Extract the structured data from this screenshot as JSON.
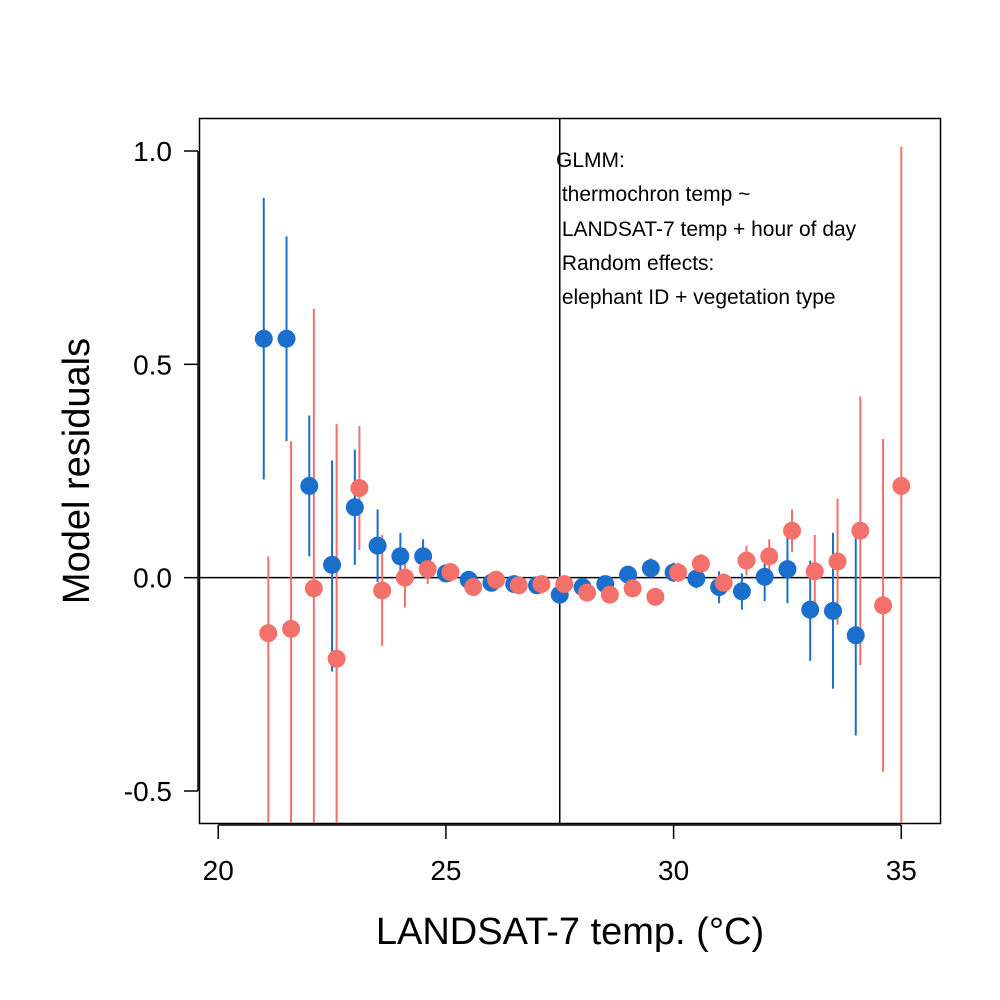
{
  "chart_data": {
    "type": "scatter",
    "xlabel": "LANDSAT-7 temp. (°C)",
    "ylabel": "Model residuals",
    "xlim": [
      19.6,
      35.85
    ],
    "ylim": [
      -0.575,
      1.075
    ],
    "x_ticks": [
      20,
      25,
      30,
      35
    ],
    "y_ticks": [
      -0.5,
      0.0,
      0.5,
      1.0
    ],
    "x_tick_labels": [
      "20",
      "25",
      "30",
      "35"
    ],
    "y_tick_labels": [
      "-0.5",
      "0.0",
      "0.5",
      "1.0"
    ],
    "reference_lines": {
      "horizontal_y": 0.0,
      "vertical_x": 27.5
    },
    "grid": false,
    "annotation_lines": [
      "GLMM:",
      " thermochron temp ~",
      " LANDSAT-7 temp + hour of day",
      " Random effects:",
      " elephant ID + vegetation type"
    ],
    "series": [
      {
        "color": "#1a6fcc",
        "points": [
          {
            "x": 21.0,
            "y": 0.56,
            "lo": 0.23,
            "hi": 0.89
          },
          {
            "x": 21.5,
            "y": 0.56,
            "lo": 0.32,
            "hi": 0.8
          },
          {
            "x": 22.0,
            "y": 0.215,
            "lo": 0.05,
            "hi": 0.38
          },
          {
            "x": 22.5,
            "y": 0.03,
            "lo": -0.22,
            "hi": 0.275
          },
          {
            "x": 23.0,
            "y": 0.165,
            "lo": 0.03,
            "hi": 0.3
          },
          {
            "x": 23.5,
            "y": 0.075,
            "lo": -0.01,
            "hi": 0.16
          },
          {
            "x": 24.0,
            "y": 0.05,
            "lo": -0.005,
            "hi": 0.105
          },
          {
            "x": 24.5,
            "y": 0.05,
            "lo": 0.01,
            "hi": 0.09
          },
          {
            "x": 25.0,
            "y": 0.01,
            "lo": -0.01,
            "hi": 0.03
          },
          {
            "x": 25.5,
            "y": -0.005,
            "lo": -0.02,
            "hi": 0.01
          },
          {
            "x": 26.0,
            "y": -0.012,
            "lo": -0.025,
            "hi": 0.0
          },
          {
            "x": 26.5,
            "y": -0.015,
            "lo": -0.03,
            "hi": 0.0
          },
          {
            "x": 27.0,
            "y": -0.018,
            "lo": -0.03,
            "hi": -0.005
          },
          {
            "x": 27.5,
            "y": -0.04,
            "lo": -0.055,
            "hi": -0.025
          },
          {
            "x": 28.0,
            "y": -0.022,
            "lo": -0.035,
            "hi": -0.01
          },
          {
            "x": 28.5,
            "y": -0.015,
            "lo": -0.03,
            "hi": 0.0
          },
          {
            "x": 29.0,
            "y": 0.007,
            "lo": -0.01,
            "hi": 0.025
          },
          {
            "x": 29.5,
            "y": 0.022,
            "lo": 0.0,
            "hi": 0.045
          },
          {
            "x": 30.0,
            "y": 0.012,
            "lo": -0.01,
            "hi": 0.035
          },
          {
            "x": 30.5,
            "y": -0.002,
            "lo": -0.025,
            "hi": 0.02
          },
          {
            "x": 31.0,
            "y": -0.022,
            "lo": -0.06,
            "hi": 0.015
          },
          {
            "x": 31.5,
            "y": -0.032,
            "lo": -0.075,
            "hi": 0.01
          },
          {
            "x": 32.0,
            "y": 0.002,
            "lo": -0.055,
            "hi": 0.06
          },
          {
            "x": 32.5,
            "y": 0.02,
            "lo": -0.06,
            "hi": 0.1
          },
          {
            "x": 33.0,
            "y": -0.075,
            "lo": -0.195,
            "hi": 0.04
          },
          {
            "x": 33.5,
            "y": -0.078,
            "lo": -0.26,
            "hi": 0.105
          },
          {
            "x": 34.0,
            "y": -0.135,
            "lo": -0.37,
            "hi": 0.1
          }
        ]
      },
      {
        "color": "#f4706b",
        "points": [
          {
            "x": 21.1,
            "y": -0.13,
            "lo": -0.575,
            "hi": 0.05
          },
          {
            "x": 21.6,
            "y": -0.12,
            "lo": -0.575,
            "hi": 0.32
          },
          {
            "x": 22.1,
            "y": -0.025,
            "lo": -0.575,
            "hi": 0.63
          },
          {
            "x": 22.6,
            "y": -0.19,
            "lo": -0.575,
            "hi": 0.36
          },
          {
            "x": 23.1,
            "y": 0.21,
            "lo": 0.065,
            "hi": 0.355
          },
          {
            "x": 23.6,
            "y": -0.03,
            "lo": -0.16,
            "hi": 0.1
          },
          {
            "x": 24.1,
            "y": 0.0,
            "lo": -0.07,
            "hi": 0.07
          },
          {
            "x": 24.6,
            "y": 0.02,
            "lo": -0.015,
            "hi": 0.055
          },
          {
            "x": 25.1,
            "y": 0.013,
            "lo": -0.01,
            "hi": 0.035
          },
          {
            "x": 25.6,
            "y": -0.022,
            "lo": -0.04,
            "hi": -0.005
          },
          {
            "x": 26.1,
            "y": -0.005,
            "lo": -0.02,
            "hi": 0.01
          },
          {
            "x": 26.6,
            "y": -0.018,
            "lo": -0.03,
            "hi": -0.005
          },
          {
            "x": 27.1,
            "y": -0.015,
            "lo": -0.028,
            "hi": 0.0
          },
          {
            "x": 27.6,
            "y": -0.015,
            "lo": -0.03,
            "hi": 0.0
          },
          {
            "x": 28.1,
            "y": -0.035,
            "lo": -0.05,
            "hi": -0.02
          },
          {
            "x": 28.6,
            "y": -0.04,
            "lo": -0.055,
            "hi": -0.025
          },
          {
            "x": 29.1,
            "y": -0.025,
            "lo": -0.04,
            "hi": -0.01
          },
          {
            "x": 29.6,
            "y": -0.045,
            "lo": -0.06,
            "hi": -0.03
          },
          {
            "x": 30.1,
            "y": 0.012,
            "lo": -0.01,
            "hi": 0.035
          },
          {
            "x": 30.6,
            "y": 0.033,
            "lo": 0.01,
            "hi": 0.055
          },
          {
            "x": 31.1,
            "y": -0.012,
            "lo": -0.035,
            "hi": 0.01
          },
          {
            "x": 31.6,
            "y": 0.04,
            "lo": 0.005,
            "hi": 0.075
          },
          {
            "x": 32.1,
            "y": 0.05,
            "lo": 0.01,
            "hi": 0.09
          },
          {
            "x": 32.6,
            "y": 0.11,
            "lo": 0.06,
            "hi": 0.16
          },
          {
            "x": 33.1,
            "y": 0.015,
            "lo": -0.07,
            "hi": 0.1
          },
          {
            "x": 33.6,
            "y": 0.038,
            "lo": -0.11,
            "hi": 0.185
          },
          {
            "x": 34.1,
            "y": 0.11,
            "lo": -0.205,
            "hi": 0.425
          },
          {
            "x": 34.6,
            "y": -0.065,
            "lo": -0.455,
            "hi": 0.325
          },
          {
            "x": 35.0,
            "y": 0.215,
            "lo": -0.575,
            "hi": 1.01
          }
        ]
      }
    ]
  }
}
